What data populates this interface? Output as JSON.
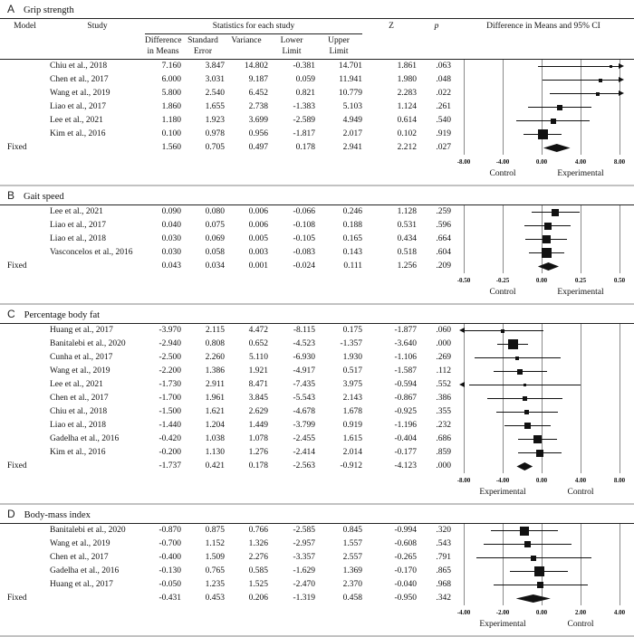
{
  "table_header": {
    "model": "Model",
    "study": "Study",
    "stats_group": "Statistics for each study",
    "sub_columns": [
      "Difference in Means",
      "Standard Error",
      "Variance",
      "Lower Limit",
      "Upper Limit"
    ],
    "sub_columns_lines": [
      [
        "Difference",
        "in Means"
      ],
      [
        "Standard",
        "Error"
      ],
      [
        "Variance"
      ],
      [
        "Lower",
        "Limit"
      ],
      [
        "Upper",
        "Limit"
      ]
    ],
    "z": "Z",
    "p": "p",
    "ci": "Difference in Means and 95% CI"
  },
  "colors": {
    "text": "#111111",
    "gridline": "#8a8a8a",
    "panel_separator": "#c2c2c2",
    "marker": "#111111"
  },
  "chart_data": [
    {
      "type": "forest",
      "label": "A",
      "title": "Grip strength",
      "axis": {
        "min": -8,
        "max": 8,
        "ticks": [
          "-8.00",
          "-4.00",
          "0.00",
          "4.00",
          "8.00"
        ],
        "left_label": "Control",
        "right_label": "Experimental"
      },
      "rows": [
        {
          "study": "Chiu et al., 2018",
          "diff": "7.160",
          "se": "3.847",
          "variance": "14.802",
          "lower": "-0.381",
          "upper": "14.701",
          "z": "1.861",
          "p": ".063"
        },
        {
          "study": "Chen et al., 2017",
          "diff": "6.000",
          "se": "3.031",
          "variance": "9.187",
          "lower": "0.059",
          "upper": "11.941",
          "z": "1.980",
          "p": ".048"
        },
        {
          "study": "Wang et al., 2019",
          "diff": "5.800",
          "se": "2.540",
          "variance": "6.452",
          "lower": "0.821",
          "upper": "10.779",
          "z": "2.283",
          "p": ".022"
        },
        {
          "study": "Liao et al., 2017",
          "diff": "1.860",
          "se": "1.655",
          "variance": "2.738",
          "lower": "-1.383",
          "upper": "5.103",
          "z": "1.124",
          "p": ".261"
        },
        {
          "study": "Lee et al., 2021",
          "diff": "1.180",
          "se": "1.923",
          "variance": "3.699",
          "lower": "-2.589",
          "upper": "4.949",
          "z": "0.614",
          "p": ".540"
        },
        {
          "study": "Kim et al., 2016",
          "diff": "0.100",
          "se": "0.978",
          "variance": "0.956",
          "lower": "-1.817",
          "upper": "2.017",
          "z": "0.102",
          "p": ".919"
        }
      ],
      "fixed": {
        "model": "Fixed",
        "study": "",
        "diff": "1.560",
        "se": "0.705",
        "variance": "0.497",
        "lower": "0.178",
        "upper": "2.941",
        "z": "2.212",
        "p": ".027"
      }
    },
    {
      "type": "forest",
      "label": "B",
      "title": "Gait speed",
      "axis": {
        "min": -0.5,
        "max": 0.5,
        "ticks": [
          "-0.50",
          "-0.25",
          "0.00",
          "0.25",
          "0.50"
        ],
        "left_label": "Control",
        "right_label": "Experimental"
      },
      "rows": [
        {
          "study": "Lee et al., 2021",
          "diff": "0.090",
          "se": "0.080",
          "variance": "0.006",
          "lower": "-0.066",
          "upper": "0.246",
          "z": "1.128",
          "p": ".259"
        },
        {
          "study": "Liao et al., 2017",
          "diff": "0.040",
          "se": "0.075",
          "variance": "0.006",
          "lower": "-0.108",
          "upper": "0.188",
          "z": "0.531",
          "p": ".596"
        },
        {
          "study": "Liao et al., 2018",
          "diff": "0.030",
          "se": "0.069",
          "variance": "0.005",
          "lower": "-0.105",
          "upper": "0.165",
          "z": "0.434",
          "p": ".664"
        },
        {
          "study": "Vasconcelos et al., 2016",
          "diff": "0.030",
          "se": "0.058",
          "variance": "0.003",
          "lower": "-0.083",
          "upper": "0.143",
          "z": "0.518",
          "p": ".604"
        }
      ],
      "fixed": {
        "model": "Fixed",
        "study": "",
        "diff": "0.043",
        "se": "0.034",
        "variance": "0.001",
        "lower": "-0.024",
        "upper": "0.111",
        "z": "1.256",
        "p": ".209"
      }
    },
    {
      "type": "forest",
      "label": "C",
      "title": "Percentage body fat",
      "axis": {
        "min": -8,
        "max": 8,
        "ticks": [
          "-8.00",
          "-4.00",
          "0.00",
          "4.00",
          "8.00"
        ],
        "left_label": "Experimental",
        "right_label": "Control"
      },
      "rows": [
        {
          "study": "Huang et al., 2017",
          "diff": "-3.970",
          "se": "2.115",
          "variance": "4.472",
          "lower": "-8.115",
          "upper": "0.175",
          "z": "-1.877",
          "p": ".060"
        },
        {
          "study": "Banitalebi et al., 2020",
          "diff": "-2.940",
          "se": "0.808",
          "variance": "0.652",
          "lower": "-4.523",
          "upper": "-1.357",
          "z": "-3.640",
          "p": ".000"
        },
        {
          "study": "Cunha et al., 2017",
          "diff": "-2.500",
          "se": "2.260",
          "variance": "5.110",
          "lower": "-6.930",
          "upper": "1.930",
          "z": "-1.106",
          "p": ".269"
        },
        {
          "study": "Wang et al., 2019",
          "diff": "-2.200",
          "se": "1.386",
          "variance": "1.921",
          "lower": "-4.917",
          "upper": "0.517",
          "z": "-1.587",
          "p": ".112"
        },
        {
          "study": "Lee et al., 2021",
          "diff": "-1.730",
          "se": "2.911",
          "variance": "8.471",
          "lower": "-7.435",
          "upper": "3.975",
          "z": "-0.594",
          "p": ".552"
        },
        {
          "study": "Chen et al., 2017",
          "diff": "-1.700",
          "se": "1.961",
          "variance": "3.845",
          "lower": "-5.543",
          "upper": "2.143",
          "z": "-0.867",
          "p": ".386"
        },
        {
          "study": "Chiu et al., 2018",
          "diff": "-1.500",
          "se": "1.621",
          "variance": "2.629",
          "lower": "-4.678",
          "upper": "1.678",
          "z": "-0.925",
          "p": ".355"
        },
        {
          "study": "Liao et al., 2018",
          "diff": "-1.440",
          "se": "1.204",
          "variance": "1.449",
          "lower": "-3.799",
          "upper": "0.919",
          "z": "-1.196",
          "p": ".232"
        },
        {
          "study": "Gadelha et al., 2016",
          "diff": "-0.420",
          "se": "1.038",
          "variance": "1.078",
          "lower": "-2.455",
          "upper": "1.615",
          "z": "-0.404",
          "p": ".686"
        },
        {
          "study": "Kim et al., 2016",
          "diff": "-0.200",
          "se": "1.130",
          "variance": "1.276",
          "lower": "-2.414",
          "upper": "2.014",
          "z": "-0.177",
          "p": ".859"
        }
      ],
      "fixed": {
        "model": "Fixed",
        "study": "",
        "diff": "-1.737",
        "se": "0.421",
        "variance": "0.178",
        "lower": "-2.563",
        "upper": "-0.912",
        "z": "-4.123",
        "p": ".000"
      }
    },
    {
      "type": "forest",
      "label": "D",
      "title": "Body-mass index",
      "axis": {
        "min": -4,
        "max": 4,
        "ticks": [
          "-4.00",
          "-2.00",
          "0.00",
          "2.00",
          "4.00"
        ],
        "left_label": "Experimental",
        "right_label": "Control"
      },
      "rows": [
        {
          "study": "Banitalebi et al., 2020",
          "diff": "-0.870",
          "se": "0.875",
          "variance": "0.766",
          "lower": "-2.585",
          "upper": "0.845",
          "z": "-0.994",
          "p": ".320"
        },
        {
          "study": "Wang et al., 2019",
          "diff": "-0.700",
          "se": "1.152",
          "variance": "1.326",
          "lower": "-2.957",
          "upper": "1.557",
          "z": "-0.608",
          "p": ".543"
        },
        {
          "study": "Chen et al., 2017",
          "diff": "-0.400",
          "se": "1.509",
          "variance": "2.276",
          "lower": "-3.357",
          "upper": "2.557",
          "z": "-0.265",
          "p": ".791"
        },
        {
          "study": "Gadelha et al., 2016",
          "diff": "-0.130",
          "se": "0.765",
          "variance": "0.585",
          "lower": "-1.629",
          "upper": "1.369",
          "z": "-0.170",
          "p": ".865"
        },
        {
          "study": "Huang et al., 2017",
          "diff": "-0.050",
          "se": "1.235",
          "variance": "1.525",
          "lower": "-2.470",
          "upper": "2.370",
          "z": "-0.040",
          "p": ".968"
        }
      ],
      "fixed": {
        "model": "Fixed",
        "study": "",
        "diff": "-0.431",
        "se": "0.453",
        "variance": "0.206",
        "lower": "-1.319",
        "upper": "0.458",
        "z": "-0.950",
        "p": ".342"
      }
    }
  ]
}
